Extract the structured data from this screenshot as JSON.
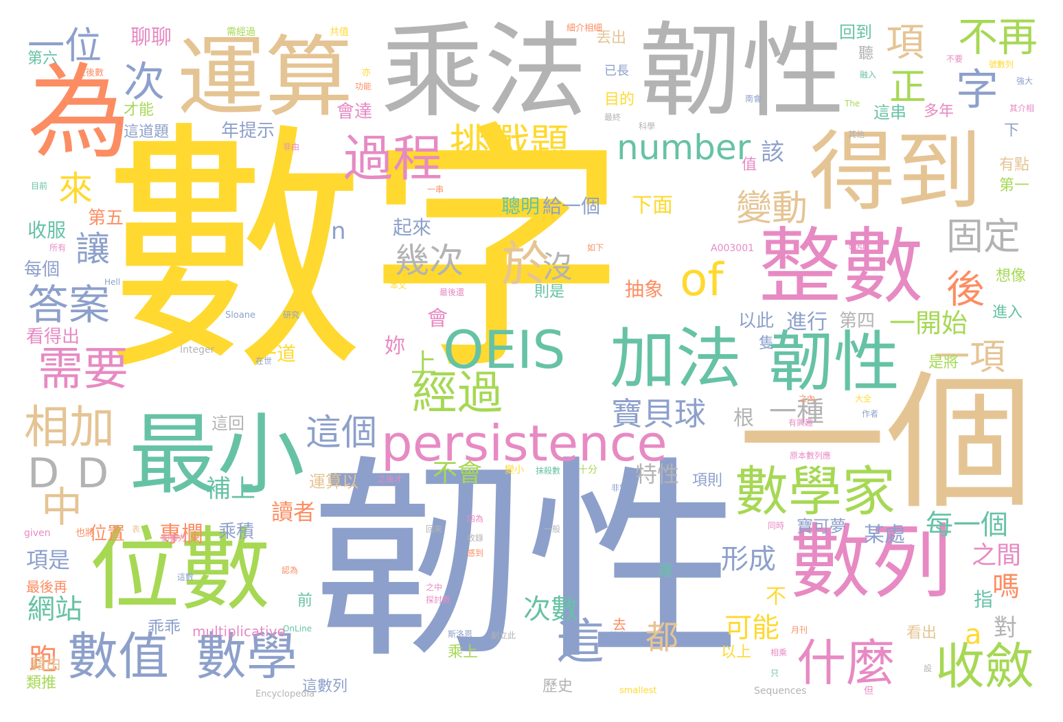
{
  "palette": {
    "yellow": "#ffd92f",
    "blue": "#8da0cb",
    "tan": "#e5c494",
    "grey": "#b3b3b3",
    "orange": "#fc8d62",
    "teal": "#66c2a5",
    "pink": "#e78ac3",
    "green": "#a6d854"
  },
  "words": [
    {
      "text": "數字",
      "color": "yellow"
    },
    {
      "text": "韌性",
      "color": "blue"
    },
    {
      "text": "一個",
      "color": "tan"
    },
    {
      "text": "乘法",
      "color": "grey"
    },
    {
      "text": "韌性",
      "color": "grey"
    },
    {
      "text": "運算",
      "color": "tan"
    },
    {
      "text": "為",
      "color": "orange"
    },
    {
      "text": "得到",
      "color": "tan"
    },
    {
      "text": "整數",
      "color": "pink"
    },
    {
      "text": "位數",
      "color": "green"
    },
    {
      "text": "最小",
      "color": "teal"
    },
    {
      "text": "數列",
      "color": "pink"
    },
    {
      "text": "加法",
      "color": "teal"
    },
    {
      "text": "韌性",
      "color": "teal"
    },
    {
      "text": "數學家",
      "color": "green"
    },
    {
      "text": "persistence",
      "color": "pink"
    },
    {
      "text": "OEIS",
      "color": "teal"
    },
    {
      "text": "數值",
      "color": "blue"
    },
    {
      "text": "數學",
      "color": "blue"
    },
    {
      "text": "什麼",
      "color": "pink"
    },
    {
      "text": "收斂",
      "color": "green"
    },
    {
      "text": "過程",
      "color": "pink"
    },
    {
      "text": "挑戰題",
      "color": "yellow"
    },
    {
      "text": "number",
      "color": "teal"
    },
    {
      "text": "經過",
      "color": "green"
    },
    {
      "text": "於",
      "color": "tan"
    },
    {
      "text": "of",
      "color": "yellow"
    },
    {
      "text": "需要",
      "color": "pink"
    },
    {
      "text": "答案",
      "color": "blue"
    },
    {
      "text": "相加",
      "color": "tan"
    },
    {
      "text": "D",
      "color": "grey"
    },
    {
      "text": "D",
      "color": "grey"
    },
    {
      "text": "中",
      "color": "tan"
    },
    {
      "text": "這個",
      "color": "blue"
    },
    {
      "text": "這",
      "color": "blue"
    },
    {
      "text": "字",
      "color": "blue"
    },
    {
      "text": "項",
      "color": "tan"
    },
    {
      "text": "不再",
      "color": "green"
    },
    {
      "text": "正",
      "color": "green"
    },
    {
      "text": "一位",
      "color": "blue"
    },
    {
      "text": "次",
      "color": "blue"
    },
    {
      "text": "來",
      "color": "yellow"
    },
    {
      "text": "讓",
      "color": "blue"
    },
    {
      "text": "幾次",
      "color": "grey"
    },
    {
      "text": "沒",
      "color": "grey"
    },
    {
      "text": "變動",
      "color": "tan"
    },
    {
      "text": "固定",
      "color": "grey"
    },
    {
      "text": "後",
      "color": "orange"
    },
    {
      "text": "一項",
      "color": "tan"
    },
    {
      "text": "一開始",
      "color": "green"
    },
    {
      "text": "寶貝球",
      "color": "blue"
    },
    {
      "text": "一種",
      "color": "grey"
    },
    {
      "text": "都",
      "color": "tan"
    },
    {
      "text": "可能",
      "color": "yellow"
    },
    {
      "text": "a",
      "color": "yellow"
    },
    {
      "text": "跑",
      "color": "orange"
    },
    {
      "text": "網站",
      "color": "teal"
    },
    {
      "text": "嗎",
      "color": "orange"
    },
    {
      "text": "每一個",
      "color": "teal"
    },
    {
      "text": "形成",
      "color": "blue"
    },
    {
      "text": "次數",
      "color": "teal"
    },
    {
      "text": "專欄",
      "color": "orange"
    },
    {
      "text": "補上",
      "color": "teal"
    },
    {
      "text": "不會",
      "color": "green"
    },
    {
      "text": "上",
      "color": "green"
    },
    {
      "text": "該",
      "color": "blue"
    },
    {
      "text": "n",
      "color": "blue"
    },
    {
      "text": "特性",
      "color": "grey"
    },
    {
      "text": "項是",
      "color": "blue"
    },
    {
      "text": "讀者",
      "color": "orange"
    },
    {
      "text": "乘積",
      "color": "blue"
    },
    {
      "text": "位置",
      "color": "orange"
    },
    {
      "text": "之間",
      "color": "pink"
    },
    {
      "text": "對",
      "color": "grey"
    },
    {
      "text": "指",
      "color": "teal"
    },
    {
      "text": "不",
      "color": "yellow"
    },
    {
      "text": "某處",
      "color": "blue"
    },
    {
      "text": "寶可夢",
      "color": "blue"
    },
    {
      "text": "收服",
      "color": "teal"
    },
    {
      "text": "每個",
      "color": "blue"
    },
    {
      "text": "看得出",
      "color": "pink"
    },
    {
      "text": "第五",
      "color": "orange"
    },
    {
      "text": "聰明",
      "color": "teal"
    },
    {
      "text": "給一個",
      "color": "blue"
    },
    {
      "text": "下面",
      "color": "yellow"
    },
    {
      "text": "起來",
      "color": "blue"
    },
    {
      "text": "以此",
      "color": "blue"
    },
    {
      "text": "進行",
      "color": "blue"
    },
    {
      "text": "第四",
      "color": "grey"
    },
    {
      "text": "抽象",
      "color": "orange"
    },
    {
      "text": "則是",
      "color": "teal"
    },
    {
      "text": "會",
      "color": "pink"
    },
    {
      "text": "妳",
      "color": "pink"
    },
    {
      "text": "一道",
      "color": "yellow"
    },
    {
      "text": "根",
      "color": "grey"
    },
    {
      "text": "這回",
      "color": "grey"
    },
    {
      "text": "運算以",
      "color": "tan"
    },
    {
      "text": "項則",
      "color": "blue"
    },
    {
      "text": "乖乖",
      "color": "blue"
    },
    {
      "text": "multiplicative",
      "color": "pink"
    },
    {
      "text": "聊聊",
      "color": "pink"
    },
    {
      "text": "丟出",
      "color": "tan"
    },
    {
      "text": "已長",
      "color": "blue"
    },
    {
      "text": "目的",
      "color": "yellow"
    },
    {
      "text": "會達",
      "color": "pink"
    },
    {
      "text": "回到",
      "color": "teal"
    },
    {
      "text": "聽",
      "color": "grey"
    },
    {
      "text": "這串",
      "color": "teal"
    },
    {
      "text": "多年",
      "color": "pink"
    },
    {
      "text": "第六",
      "color": "teal"
    },
    {
      "text": "才能",
      "color": "green"
    },
    {
      "text": "這道題",
      "color": "blue"
    },
    {
      "text": "年提示",
      "color": "blue"
    },
    {
      "text": "有點",
      "color": "tan"
    },
    {
      "text": "第一",
      "color": "green"
    },
    {
      "text": "下",
      "color": "blue"
    },
    {
      "text": "想像",
      "color": "green"
    },
    {
      "text": "進入",
      "color": "teal"
    },
    {
      "text": "是將",
      "color": "green"
    },
    {
      "text": "隻",
      "color": "blue"
    },
    {
      "text": "值",
      "color": "pink"
    },
    {
      "text": "藉由",
      "color": "tan"
    },
    {
      "text": "類推",
      "color": "green"
    },
    {
      "text": "最後再",
      "color": "orange"
    },
    {
      "text": "前",
      "color": "teal"
    },
    {
      "text": "去",
      "color": "orange"
    },
    {
      "text": "乘上",
      "color": "green"
    },
    {
      "text": "這數列",
      "color": "blue"
    },
    {
      "text": "歷史",
      "color": "grey"
    },
    {
      "text": "以上",
      "color": "yellow"
    },
    {
      "text": "看出",
      "color": "tan"
    },
    {
      "text": "達",
      "color": "teal"
    },
    {
      "text": "需經過",
      "color": "green"
    },
    {
      "text": "共值",
      "color": "yellow"
    },
    {
      "text": "細介相細",
      "color": "orange"
    },
    {
      "text": "之後數",
      "color": "orange"
    },
    {
      "text": "亦",
      "color": "yellow"
    },
    {
      "text": "功能",
      "color": "orange"
    },
    {
      "text": "不要",
      "color": "pink"
    },
    {
      "text": "融入",
      "color": "teal"
    },
    {
      "text": "號數列",
      "color": "yellow"
    },
    {
      "text": "強大",
      "color": "blue"
    },
    {
      "text": "其介相",
      "color": "pink"
    },
    {
      "text": "南會",
      "color": "blue"
    },
    {
      "text": "最終",
      "color": "grey"
    },
    {
      "text": "科學",
      "color": "grey"
    },
    {
      "text": "The",
      "color": "green"
    },
    {
      "text": "其他",
      "color": "grey"
    },
    {
      "text": "非由",
      "color": "pink"
    },
    {
      "text": "目前",
      "color": "teal"
    },
    {
      "text": "一串",
      "color": "orange"
    },
    {
      "text": "值應",
      "color": "yellow"
    },
    {
      "text": "所有",
      "color": "pink"
    },
    {
      "text": "已知",
      "color": "pink"
    },
    {
      "text": "A003001",
      "color": "pink"
    },
    {
      "text": "如下",
      "color": "orange"
    },
    {
      "text": "本文",
      "color": "yellow"
    },
    {
      "text": "最後還",
      "color": "pink"
    },
    {
      "text": "Hell",
      "color": "blue"
    },
    {
      "text": "Sloane",
      "color": "blue"
    },
    {
      "text": "研究",
      "color": "blue"
    },
    {
      "text": "Integer",
      "color": "grey"
    },
    {
      "text": "在世",
      "color": "blue"
    },
    {
      "text": "之內",
      "color": "orange"
    },
    {
      "text": "大全",
      "color": "yellow"
    },
    {
      "text": "有興趣",
      "color": "pink"
    },
    {
      "text": "作者",
      "color": "blue"
    },
    {
      "text": "之後才",
      "color": "pink"
    },
    {
      "text": "變小",
      "color": "yellow"
    },
    {
      "text": "抹殺數",
      "color": "teal"
    },
    {
      "text": "十分",
      "color": "green"
    },
    {
      "text": "非常",
      "color": "blue"
    },
    {
      "text": "原本數列應",
      "color": "pink"
    },
    {
      "text": "表",
      "color": "tan"
    },
    {
      "text": "也將",
      "color": "orange"
    },
    {
      "text": "given",
      "color": "pink"
    },
    {
      "text": "影響力",
      "color": "pink"
    },
    {
      "text": "四為",
      "color": "pink"
    },
    {
      "text": "回來",
      "color": "grey"
    },
    {
      "text": "收錄",
      "color": "grey"
    },
    {
      "text": "感到",
      "color": "orange"
    },
    {
      "text": "一般",
      "color": "grey"
    },
    {
      "text": "同時",
      "color": "pink"
    },
    {
      "text": "這數",
      "color": "blue"
    },
    {
      "text": "認為",
      "color": "orange"
    },
    {
      "text": "之中",
      "color": "pink"
    },
    {
      "text": "探討數",
      "color": "pink"
    },
    {
      "text": "斯洛恩",
      "color": "blue"
    },
    {
      "text": "創立此",
      "color": "grey"
    },
    {
      "text": "特定",
      "color": "blue"
    },
    {
      "text": "相乘",
      "color": "pink"
    },
    {
      "text": "只",
      "color": "teal"
    },
    {
      "text": "設",
      "color": "grey"
    },
    {
      "text": "月刊",
      "color": "orange"
    },
    {
      "text": "OnLine",
      "color": "teal"
    },
    {
      "text": "Encyclopedia",
      "color": "grey"
    },
    {
      "text": "smallest",
      "color": "yellow"
    },
    {
      "text": "Sequences",
      "color": "grey"
    },
    {
      "text": "但",
      "color": "pink"
    }
  ]
}
